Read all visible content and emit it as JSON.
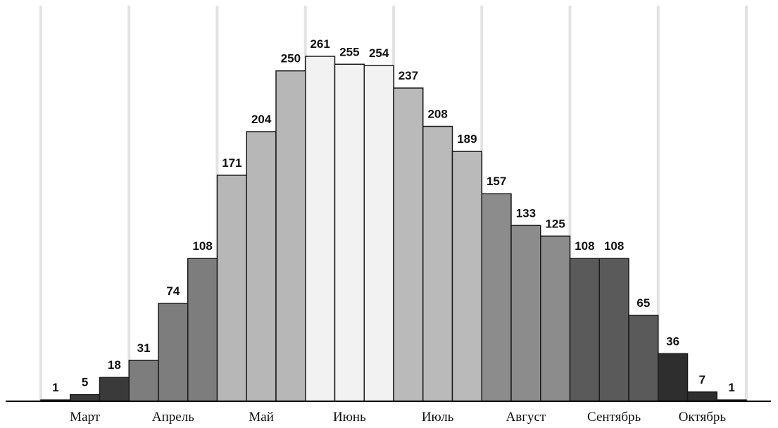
{
  "chart_data": {
    "type": "bar",
    "title": "",
    "xlabel": "",
    "ylabel": "",
    "grid": "vertical month separators",
    "legend": "none",
    "ylim": [
      0,
      261
    ],
    "months": [
      "Март",
      "Апрель",
      "Май",
      "Июнь",
      "Июль",
      "Август",
      "Сентябрь",
      "Октябрь"
    ],
    "bars_per_month": 3,
    "values": [
      1,
      5,
      18,
      31,
      74,
      108,
      171,
      204,
      250,
      261,
      255,
      254,
      237,
      208,
      189,
      157,
      133,
      125,
      108,
      108,
      65,
      36,
      7,
      1
    ],
    "value_labels": [
      "1",
      "5",
      "18",
      "31",
      "74",
      "108",
      "171",
      "204",
      "250",
      "261",
      "255",
      "254",
      "237",
      "208",
      "189",
      "157",
      "133",
      "125",
      "108",
      "108",
      "65",
      "36",
      "7",
      "1"
    ],
    "month_colors": [
      "#3a3a3a",
      "#7d7d7d",
      "#b7b7b7",
      "#f2f2f2",
      "#bababa",
      "#8c8c8c",
      "#5a5a5a",
      "#2e2e2e"
    ]
  }
}
